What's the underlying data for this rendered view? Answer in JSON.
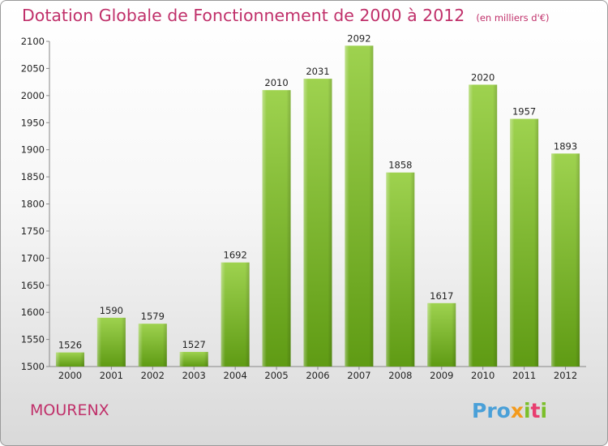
{
  "title": "Dotation Globale de Fonctionnement de 2000 à 2012",
  "subtitle": "(en milliers d'€)",
  "commune": "MOURENX",
  "logo": {
    "p1": "Pro",
    "p2": "x",
    "p3": "i",
    "p4": "t",
    "p5": "i"
  },
  "colors": {
    "bar_light": "#9ed24f",
    "bar_dark": "#5f9b14",
    "title": "#c0306a"
  },
  "chart_data": {
    "type": "bar",
    "categories": [
      "2000",
      "2001",
      "2002",
      "2003",
      "2004",
      "2005",
      "2006",
      "2007",
      "2008",
      "2009",
      "2010",
      "2011",
      "2012"
    ],
    "values": [
      1526,
      1590,
      1579,
      1527,
      1692,
      2010,
      2031,
      2092,
      1858,
      1617,
      2020,
      1957,
      1893
    ],
    "ylim": [
      1500,
      2100
    ],
    "yticks": [
      1500,
      1550,
      1600,
      1650,
      1700,
      1750,
      1800,
      1850,
      1900,
      1950,
      2000,
      2050,
      2100
    ],
    "grid": false
  }
}
